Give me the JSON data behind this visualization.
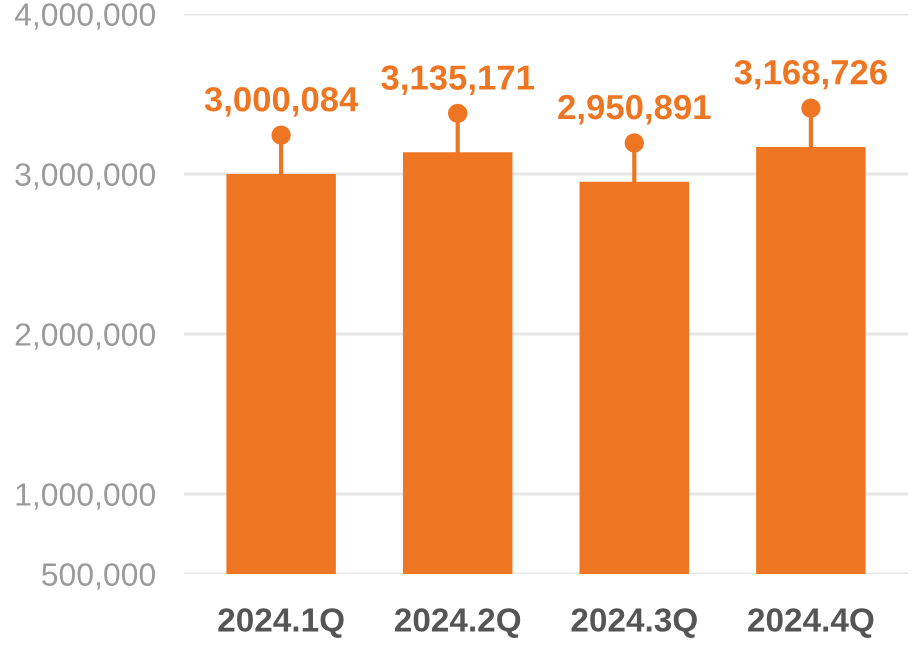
{
  "chart_data": {
    "type": "bar",
    "categories": [
      "2024.1Q",
      "2024.2Q",
      "2024.3Q",
      "2024.4Q"
    ],
    "values": [
      3000084,
      3135171,
      2950891,
      3168726
    ],
    "color": "#ee7623",
    "ylim": [
      500000,
      4000000
    ],
    "yticks": [
      {
        "value": 500000,
        "label": "500,000"
      },
      {
        "value": 1000000,
        "label": "1,000,000"
      },
      {
        "value": 2000000,
        "label": "2,000,000"
      },
      {
        "value": 3000000,
        "label": "3,000,000"
      },
      {
        "value": 4000000,
        "label": "4,000,000"
      }
    ],
    "grid": "y",
    "value_labels": [
      "3,000,084",
      "3,135,171",
      "2,950,891",
      "3,168,726"
    ]
  }
}
